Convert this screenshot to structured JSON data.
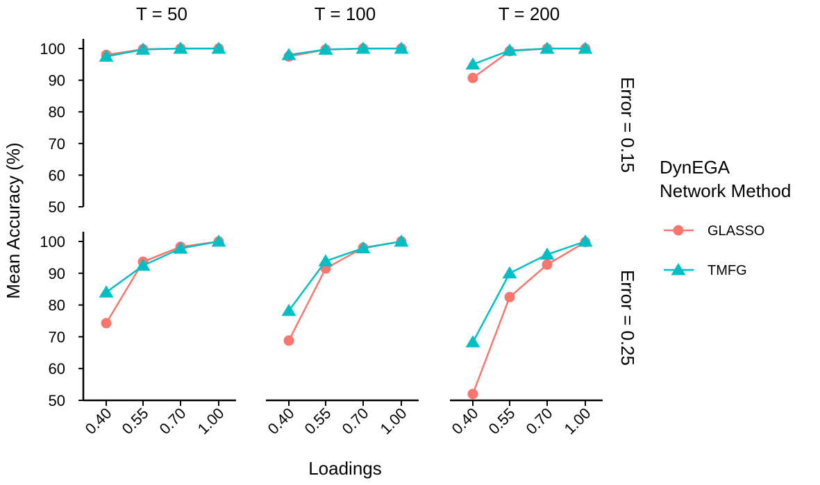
{
  "chart_data": {
    "type": "line",
    "facet_columns": [
      "T = 50",
      "T = 100",
      "T = 200"
    ],
    "facet_rows": [
      "Error = 0.15",
      "Error = 0.25"
    ],
    "xlabel": "Loadings",
    "ylabel": "Mean Accuracy (%)",
    "x_categories": [
      "0.40",
      "0.55",
      "0.70",
      "1.00"
    ],
    "y_ticks": [
      50,
      60,
      70,
      80,
      90,
      100
    ],
    "ylim": [
      50,
      100
    ],
    "grid": false,
    "legend": {
      "title_line1": "DynEGA",
      "title_line2": "Network Method",
      "placement": "right",
      "items": [
        {
          "label": "GLASSO",
          "color": "#F8766D",
          "marker": "circle"
        },
        {
          "label": "TMFG",
          "color": "#00BFC4",
          "marker": "triangle"
        }
      ]
    },
    "panels": [
      {
        "row": 0,
        "col": 0,
        "series": [
          {
            "name": "GLASSO",
            "values": [
              98.0,
              99.8,
              100.0,
              100.0
            ]
          },
          {
            "name": "TMFG",
            "values": [
              97.5,
              99.7,
              100.0,
              100.0
            ]
          }
        ]
      },
      {
        "row": 0,
        "col": 1,
        "series": [
          {
            "name": "GLASSO",
            "values": [
              97.5,
              99.7,
              100.0,
              100.0
            ]
          },
          {
            "name": "TMFG",
            "values": [
              98.0,
              99.7,
              100.0,
              100.0
            ]
          }
        ]
      },
      {
        "row": 0,
        "col": 2,
        "series": [
          {
            "name": "GLASSO",
            "values": [
              90.7,
              99.2,
              100.0,
              100.0
            ]
          },
          {
            "name": "TMFG",
            "values": [
              95.0,
              99.4,
              100.0,
              100.0
            ]
          }
        ]
      },
      {
        "row": 1,
        "col": 0,
        "series": [
          {
            "name": "GLASSO",
            "values": [
              74.3,
              93.6,
              98.3,
              100.0
            ]
          },
          {
            "name": "TMFG",
            "values": [
              84.0,
              92.4,
              97.8,
              100.0
            ]
          }
        ]
      },
      {
        "row": 1,
        "col": 1,
        "series": [
          {
            "name": "GLASSO",
            "values": [
              68.8,
              91.5,
              98.0,
              100.0
            ]
          },
          {
            "name": "TMFG",
            "values": [
              78.2,
              93.8,
              97.9,
              100.0
            ]
          }
        ]
      },
      {
        "row": 1,
        "col": 2,
        "series": [
          {
            "name": "GLASSO",
            "values": [
              52.0,
              82.5,
              92.7,
              99.8
            ]
          },
          {
            "name": "TMFG",
            "values": [
              68.3,
              90.0,
              95.9,
              100.0
            ]
          }
        ]
      }
    ]
  }
}
